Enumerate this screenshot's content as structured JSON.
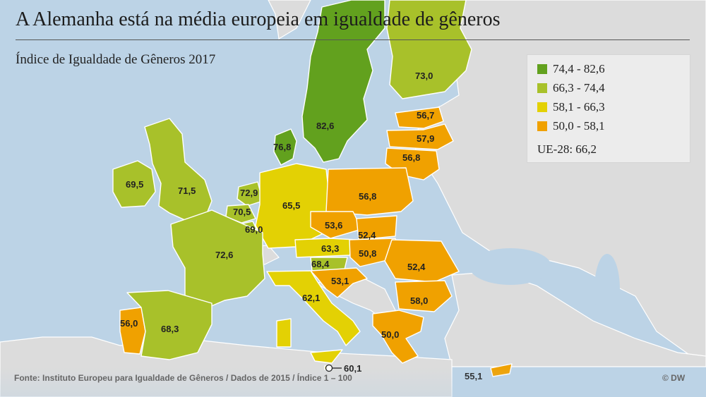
{
  "title": "A Alemanha está na média europeia em igualdade de gêneros",
  "subtitle": "Índice de Igualdade de Gêneros 2017",
  "legend": {
    "items": [
      {
        "label": "74,4 - 82,6",
        "color": "#62a11e"
      },
      {
        "label": "66,3 - 74,4",
        "color": "#a8c12a"
      },
      {
        "label": "58,1 - 66,3",
        "color": "#e3d104"
      },
      {
        "label": "50,0 - 58,1",
        "color": "#f0a100"
      }
    ],
    "eu_average": "UE-28: 66,2"
  },
  "regions": [
    {
      "name": "sweden",
      "value": "82,6",
      "cls": 0
    },
    {
      "name": "finland",
      "value": "73,0",
      "cls": 1
    },
    {
      "name": "estonia",
      "value": "56,7",
      "cls": 3
    },
    {
      "name": "latvia",
      "value": "57,9",
      "cls": 3
    },
    {
      "name": "lithuania",
      "value": "56,8",
      "cls": 3
    },
    {
      "name": "denmark",
      "value": "76,8",
      "cls": 0
    },
    {
      "name": "ireland",
      "value": "69,5",
      "cls": 1
    },
    {
      "name": "united-kingdom",
      "value": "71,5",
      "cls": 1
    },
    {
      "name": "netherlands",
      "value": "72,9",
      "cls": 1
    },
    {
      "name": "belgium",
      "value": "70,5",
      "cls": 1
    },
    {
      "name": "luxembourg",
      "value": "69,0",
      "cls": 1
    },
    {
      "name": "germany",
      "value": "65,5",
      "cls": 2
    },
    {
      "name": "poland",
      "value": "56,8",
      "cls": 3
    },
    {
      "name": "czech-republic",
      "value": "53,6",
      "cls": 3
    },
    {
      "name": "slovakia",
      "value": "52,4",
      "cls": 3
    },
    {
      "name": "austria",
      "value": "63,3",
      "cls": 2
    },
    {
      "name": "hungary",
      "value": "50,8",
      "cls": 3
    },
    {
      "name": "slovenia",
      "value": "68,4",
      "cls": 1
    },
    {
      "name": "croatia",
      "value": "53,1",
      "cls": 3
    },
    {
      "name": "romania",
      "value": "52,4",
      "cls": 3
    },
    {
      "name": "bulgaria",
      "value": "58,0",
      "cls": 3
    },
    {
      "name": "france",
      "value": "72,6",
      "cls": 1
    },
    {
      "name": "italy",
      "value": "62,1",
      "cls": 2
    },
    {
      "name": "greece",
      "value": "50,0",
      "cls": 3
    },
    {
      "name": "portugal",
      "value": "56,0",
      "cls": 3
    },
    {
      "name": "spain",
      "value": "68,3",
      "cls": 1
    },
    {
      "name": "malta",
      "value": "60,1",
      "cls": 2
    },
    {
      "name": "cyprus",
      "value": "55,1",
      "cls": 3
    }
  ],
  "footer": {
    "source": "Fonte: Instituto Europeu para Igualdade de Gêneros / Dados de 2015 / Índice 1 – 100",
    "credit": "© DW"
  }
}
